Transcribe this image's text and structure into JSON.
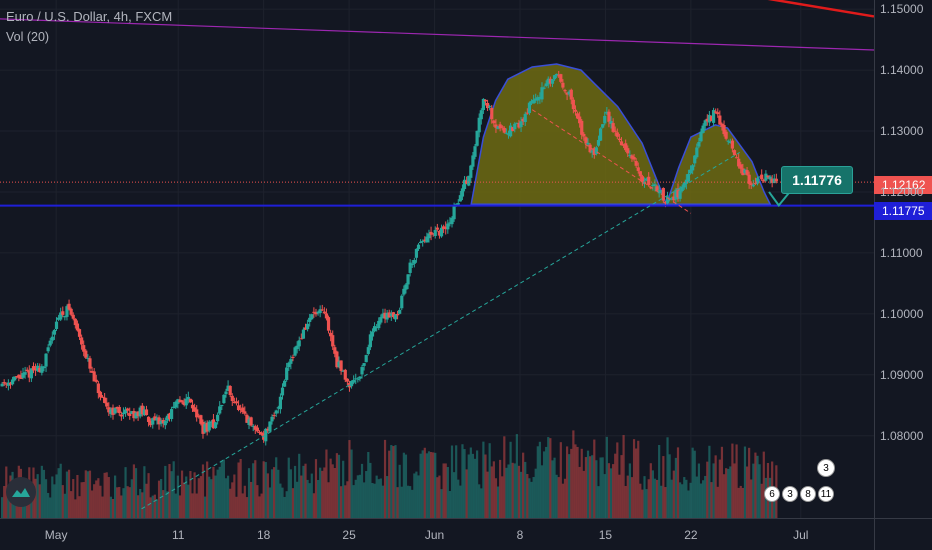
{
  "header": {
    "symbol_line": "Euro / U.S. Dollar, 4h, FXCM",
    "indicator_line": "Vol (20)"
  },
  "price_tags": {
    "current_price": "1.12162",
    "neckline_price": "1.11775"
  },
  "annotation": {
    "target_label": "1.11776"
  },
  "colors": {
    "background": "#131722",
    "up": "#26a69a",
    "down": "#ef5350",
    "shape_fill": "#6f6b12",
    "neckline": "#1f1fd8",
    "trend_upper": "#9c27b0",
    "trend_top": "#e01b1b"
  },
  "event_badges": [
    "6",
    "3",
    "8",
    "11",
    "3"
  ],
  "chart_data": {
    "type": "candlestick",
    "symbol": "Euro / U.S. Dollar",
    "interval": "4h",
    "source": "FXCM",
    "y_ticks": [
      "1.15000",
      "1.14000",
      "1.13000",
      "1.12000",
      "1.11000",
      "1.10000",
      "1.09000",
      "1.08000"
    ],
    "y_tick_values": [
      1.15,
      1.14,
      1.13,
      1.12,
      1.11,
      1.1,
      1.09,
      1.08
    ],
    "ylim": [
      1.0665,
      1.1515
    ],
    "x_ticks": [
      "May",
      "11",
      "18",
      "25",
      "Jun",
      "8",
      "15",
      "22",
      "Jul"
    ],
    "x_tick_days": [
      1,
      11,
      18,
      25,
      32,
      39,
      46,
      53,
      62
    ],
    "xlim_days": [
      -3.6,
      68
    ],
    "price_path": [
      [
        -3.6,
        1.0885
      ],
      [
        -2,
        1.0895
      ],
      [
        0,
        1.0915
      ],
      [
        1,
        1.099
      ],
      [
        2,
        1.101
      ],
      [
        3,
        1.096
      ],
      [
        4,
        1.0895
      ],
      [
        5,
        1.0845
      ],
      [
        6,
        1.084
      ],
      [
        7,
        1.0835
      ],
      [
        8,
        1.084
      ],
      [
        9,
        1.082
      ],
      [
        10,
        1.0825
      ],
      [
        11,
        1.0855
      ],
      [
        12,
        1.086
      ],
      [
        13,
        1.081
      ],
      [
        14,
        1.082
      ],
      [
        15,
        1.088
      ],
      [
        16,
        1.084
      ],
      [
        17,
        1.0815
      ],
      [
        18,
        1.08
      ],
      [
        19,
        1.0835
      ],
      [
        20,
        1.092
      ],
      [
        21,
        1.096
      ],
      [
        22,
        1.1
      ],
      [
        23,
        1.1
      ],
      [
        24,
        1.092
      ],
      [
        25,
        1.0885
      ],
      [
        26,
        1.0905
      ],
      [
        27,
        1.098
      ],
      [
        28,
        1.1
      ],
      [
        29,
        1.1
      ],
      [
        30,
        1.108
      ],
      [
        31,
        1.112
      ],
      [
        32,
        1.113
      ],
      [
        33,
        1.114
      ],
      [
        34,
        1.119
      ],
      [
        35,
        1.124
      ],
      [
        36,
        1.136
      ],
      [
        37,
        1.131
      ],
      [
        38,
        1.13
      ],
      [
        39,
        1.131
      ],
      [
        40,
        1.135
      ],
      [
        41,
        1.137
      ],
      [
        42,
        1.1395
      ],
      [
        43,
        1.136
      ],
      [
        44,
        1.13
      ],
      [
        45,
        1.126
      ],
      [
        46,
        1.133
      ],
      [
        47,
        1.129
      ],
      [
        48,
        1.126
      ],
      [
        49,
        1.122
      ],
      [
        50,
        1.121
      ],
      [
        51,
        1.1185
      ],
      [
        52,
        1.12
      ],
      [
        53,
        1.123
      ],
      [
        54,
        1.131
      ],
      [
        55,
        1.133
      ],
      [
        56,
        1.129
      ],
      [
        57,
        1.124
      ],
      [
        58,
        1.1215
      ],
      [
        59,
        1.1225
      ],
      [
        60,
        1.1216
      ]
    ],
    "volume_profile": [
      [
        -3.6,
        0.9
      ],
      [
        5,
        0.8
      ],
      [
        12,
        0.9
      ],
      [
        20,
        0.95
      ],
      [
        27,
        1.3
      ],
      [
        30,
        1.1
      ],
      [
        36,
        1.25
      ],
      [
        43,
        1.35
      ],
      [
        50,
        1.3
      ],
      [
        55,
        1.2
      ],
      [
        60,
        1.0
      ]
    ],
    "overlays": {
      "neckline": 1.11775,
      "current_line": 1.12162,
      "rising_trend": [
        [
          8,
          1.068
        ],
        [
          57,
          1.1265
        ]
      ],
      "upper_trend": [
        [
          -3.6,
          1.1484
        ],
        [
          68,
          1.1433
        ]
      ],
      "top_trend": [
        [
          59,
          1.1518
        ],
        [
          68,
          1.1488
        ]
      ],
      "shoulder_shape": [
        [
          35,
          1.118
        ],
        [
          36,
          1.129
        ],
        [
          37,
          1.135
        ],
        [
          38,
          1.1385
        ],
        [
          40,
          1.1405
        ],
        [
          42,
          1.141
        ],
        [
          44,
          1.14
        ],
        [
          45,
          1.138
        ],
        [
          47,
          1.134
        ],
        [
          49,
          1.128
        ],
        [
          50,
          1.123
        ],
        [
          51,
          1.118
        ],
        [
          52,
          1.124
        ],
        [
          53,
          1.129
        ],
        [
          55,
          1.131
        ],
        [
          56,
          1.1305
        ],
        [
          58,
          1.125
        ],
        [
          59,
          1.12
        ],
        [
          59.5,
          1.118
        ]
      ]
    }
  }
}
